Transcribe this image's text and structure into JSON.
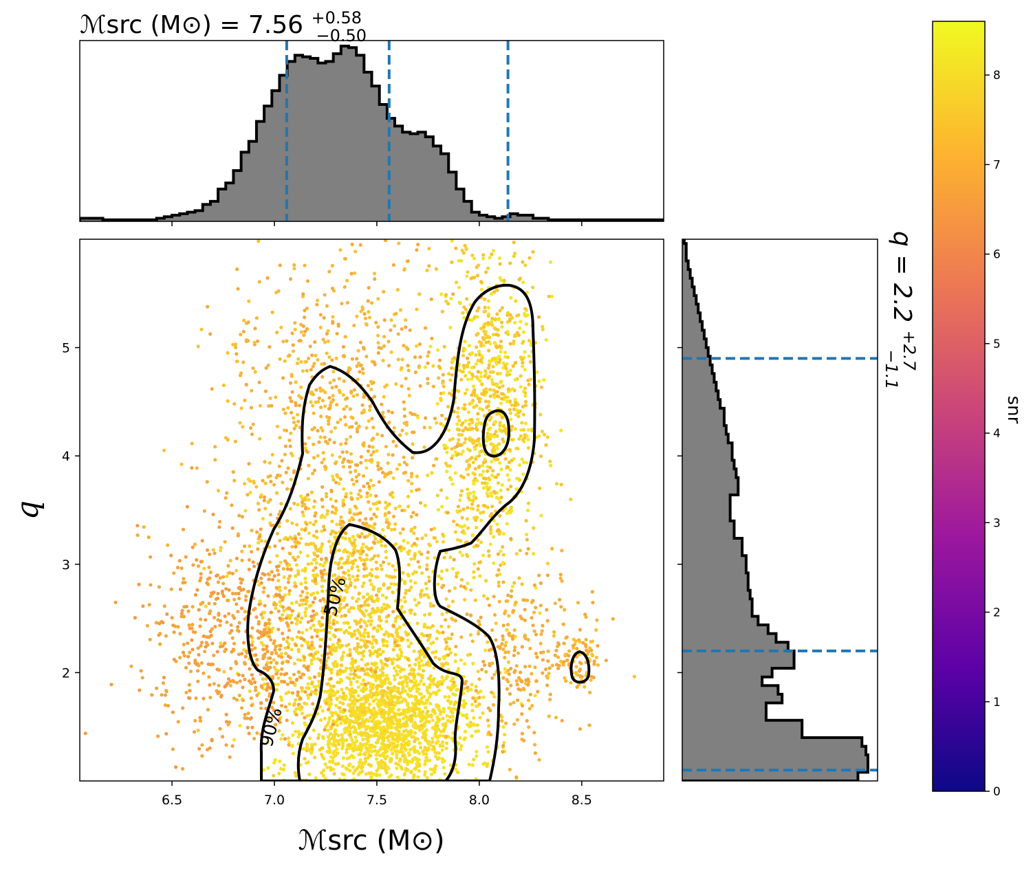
{
  "chart_data": [
    {
      "type": "scatter",
      "panel": "joint",
      "xlabel": "ℳsrc (M⊙)",
      "ylabel": "q",
      "xlim": [
        6.05,
        8.9
      ],
      "ylim": [
        1.0,
        6.0
      ],
      "xticks": [
        "6.5",
        "7.0",
        "7.5",
        "8.0",
        "8.5"
      ],
      "yticks": [
        "2",
        "3",
        "4",
        "5"
      ],
      "color_by": "snr",
      "contour_labels": [
        "50%",
        "90%"
      ]
    },
    {
      "type": "bar",
      "panel": "marginal-top",
      "title_base": "ℳsrc (M⊙) = 7.56",
      "title_sup": "+0.58",
      "title_sub": "−0.50",
      "median": 7.56,
      "lower": 7.06,
      "upper": 8.14,
      "bin_edges_start": 6.05,
      "bin_width": 0.0375,
      "densities": [
        0.02,
        0.02,
        0.02,
        0.01,
        0.01,
        0.01,
        0.01,
        0.01,
        0.01,
        0.01,
        0.02,
        0.03,
        0.04,
        0.05,
        0.06,
        0.07,
        0.11,
        0.13,
        0.21,
        0.25,
        0.33,
        0.45,
        0.52,
        0.65,
        0.75,
        0.85,
        0.95,
        1.04,
        1.08,
        1.07,
        1.06,
        1.03,
        1.04,
        1.09,
        1.14,
        1.13,
        1.08,
        0.97,
        0.88,
        0.76,
        0.67,
        0.62,
        0.58,
        0.57,
        0.58,
        0.55,
        0.49,
        0.44,
        0.32,
        0.21,
        0.13,
        0.06,
        0.04,
        0.03,
        0.02,
        0.03,
        0.05,
        0.04,
        0.04,
        0.02,
        0.02,
        0.01,
        0.01,
        0.01,
        0.01,
        0.01,
        0.01,
        0.01,
        0.01,
        0.01,
        0.01,
        0.01,
        0.01,
        0.01,
        0.01,
        0.01
      ]
    },
    {
      "type": "bar",
      "panel": "marginal-right",
      "title_base": "q = 2.2",
      "title_sup": "+2.7",
      "title_sub": "−1.1",
      "median": 2.2,
      "lower": 1.1,
      "upper": 4.9,
      "bin_edges_start": 1.0,
      "bin_width": 0.08,
      "densities": [
        0.88,
        0.93,
        0.93,
        0.92,
        0.9,
        0.6,
        0.6,
        0.42,
        0.42,
        0.5,
        0.48,
        0.4,
        0.45,
        0.56,
        0.56,
        0.53,
        0.47,
        0.43,
        0.38,
        0.35,
        0.35,
        0.34,
        0.33,
        0.33,
        0.32,
        0.32,
        0.3,
        0.3,
        0.26,
        0.26,
        0.24,
        0.24,
        0.24,
        0.28,
        0.28,
        0.27,
        0.26,
        0.25,
        0.25,
        0.23,
        0.22,
        0.21,
        0.21,
        0.19,
        0.18,
        0.17,
        0.16,
        0.15,
        0.14,
        0.13,
        0.12,
        0.11,
        0.1,
        0.09,
        0.08,
        0.07,
        0.06,
        0.05,
        0.04,
        0.03,
        0.02,
        0.02,
        0.01
      ]
    },
    {
      "type": "colorbar",
      "label": "snr",
      "range": [
        0,
        8.6
      ],
      "ticks": [
        "0",
        "1",
        "2",
        "3",
        "4",
        "5",
        "6",
        "7",
        "8"
      ],
      "colormap": "plasma",
      "colors": [
        "#0d0887",
        "#5c01a6",
        "#9c179e",
        "#cc4778",
        "#ed7953",
        "#fdb42f",
        "#f0f921"
      ]
    }
  ]
}
